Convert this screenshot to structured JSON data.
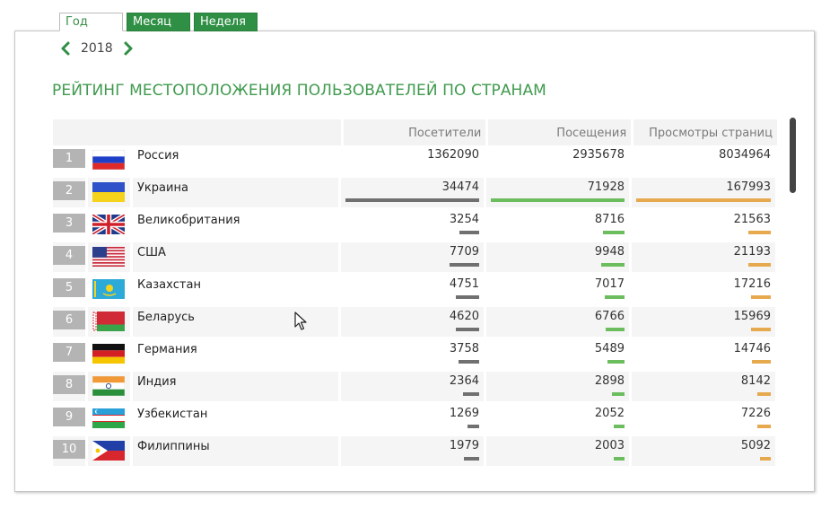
{
  "tabs": [
    {
      "label": "Год",
      "active": true
    },
    {
      "label": "Месяц",
      "active": false
    },
    {
      "label": "Неделя",
      "active": false
    }
  ],
  "year_nav": {
    "prev_icon": "chevron-left-icon",
    "year": "2018",
    "next_icon": "chevron-right-icon"
  },
  "title": "РЕЙТИНГ МЕСТОПОЛОЖЕНИЯ ПОЛЬЗОВАТЕЛЕЙ ПО СТРАНАМ",
  "colors": {
    "visitors_bar": "#707070",
    "visits_bar": "#6cbd5e",
    "pageviews_bar": "#e7a94e",
    "accent": "#2f8f45"
  },
  "columns": [
    "Посетители",
    "Посещения",
    "Просмотры страниц"
  ],
  "rows": [
    {
      "rank": "1",
      "flag": "russia-flag-icon",
      "country": "Россия",
      "visitors": 1362090,
      "visits": 2935678,
      "pageviews": 8034964,
      "visitors_text": "1362090",
      "visits_text": "2935678",
      "pageviews_text": "8034964"
    },
    {
      "rank": "2",
      "flag": "ukraine-flag-icon",
      "country": "Украина",
      "visitors": 34474,
      "visits": 71928,
      "pageviews": 167993,
      "visitors_text": "34474",
      "visits_text": "71928",
      "pageviews_text": "167993"
    },
    {
      "rank": "3",
      "flag": "uk-flag-icon",
      "country": "Великобритания",
      "visitors": 3254,
      "visits": 8716,
      "pageviews": 21563,
      "visitors_text": "3254",
      "visits_text": "8716",
      "pageviews_text": "21563"
    },
    {
      "rank": "4",
      "flag": "usa-flag-icon",
      "country": "США",
      "visitors": 7709,
      "visits": 9948,
      "pageviews": 21193,
      "visitors_text": "7709",
      "visits_text": "9948",
      "pageviews_text": "21193"
    },
    {
      "rank": "5",
      "flag": "kazakhstan-flag-icon",
      "country": "Казахстан",
      "visitors": 4751,
      "visits": 7017,
      "pageviews": 17216,
      "visitors_text": "4751",
      "visits_text": "7017",
      "pageviews_text": "17216"
    },
    {
      "rank": "6",
      "flag": "belarus-flag-icon",
      "country": "Беларусь",
      "visitors": 4620,
      "visits": 6766,
      "pageviews": 15969,
      "visitors_text": "4620",
      "visits_text": "6766",
      "pageviews_text": "15969"
    },
    {
      "rank": "7",
      "flag": "germany-flag-icon",
      "country": "Германия",
      "visitors": 3758,
      "visits": 5489,
      "pageviews": 14746,
      "visitors_text": "3758",
      "visits_text": "5489",
      "pageviews_text": "14746"
    },
    {
      "rank": "8",
      "flag": "india-flag-icon",
      "country": "Индия",
      "visitors": 2364,
      "visits": 2898,
      "pageviews": 8142,
      "visitors_text": "2364",
      "visits_text": "2898",
      "pageviews_text": "8142"
    },
    {
      "rank": "9",
      "flag": "uzbekistan-flag-icon",
      "country": "Узбекистан",
      "visitors": 1269,
      "visits": 2052,
      "pageviews": 7226,
      "visitors_text": "1269",
      "visits_text": "2052",
      "pageviews_text": "7226"
    },
    {
      "rank": "10",
      "flag": "philippines-flag-icon",
      "country": "Филиппины",
      "visitors": 1979,
      "visits": 2003,
      "pageviews": 5092,
      "visitors_text": "1979",
      "visits_text": "2003",
      "pageviews_text": "5092"
    }
  ]
}
